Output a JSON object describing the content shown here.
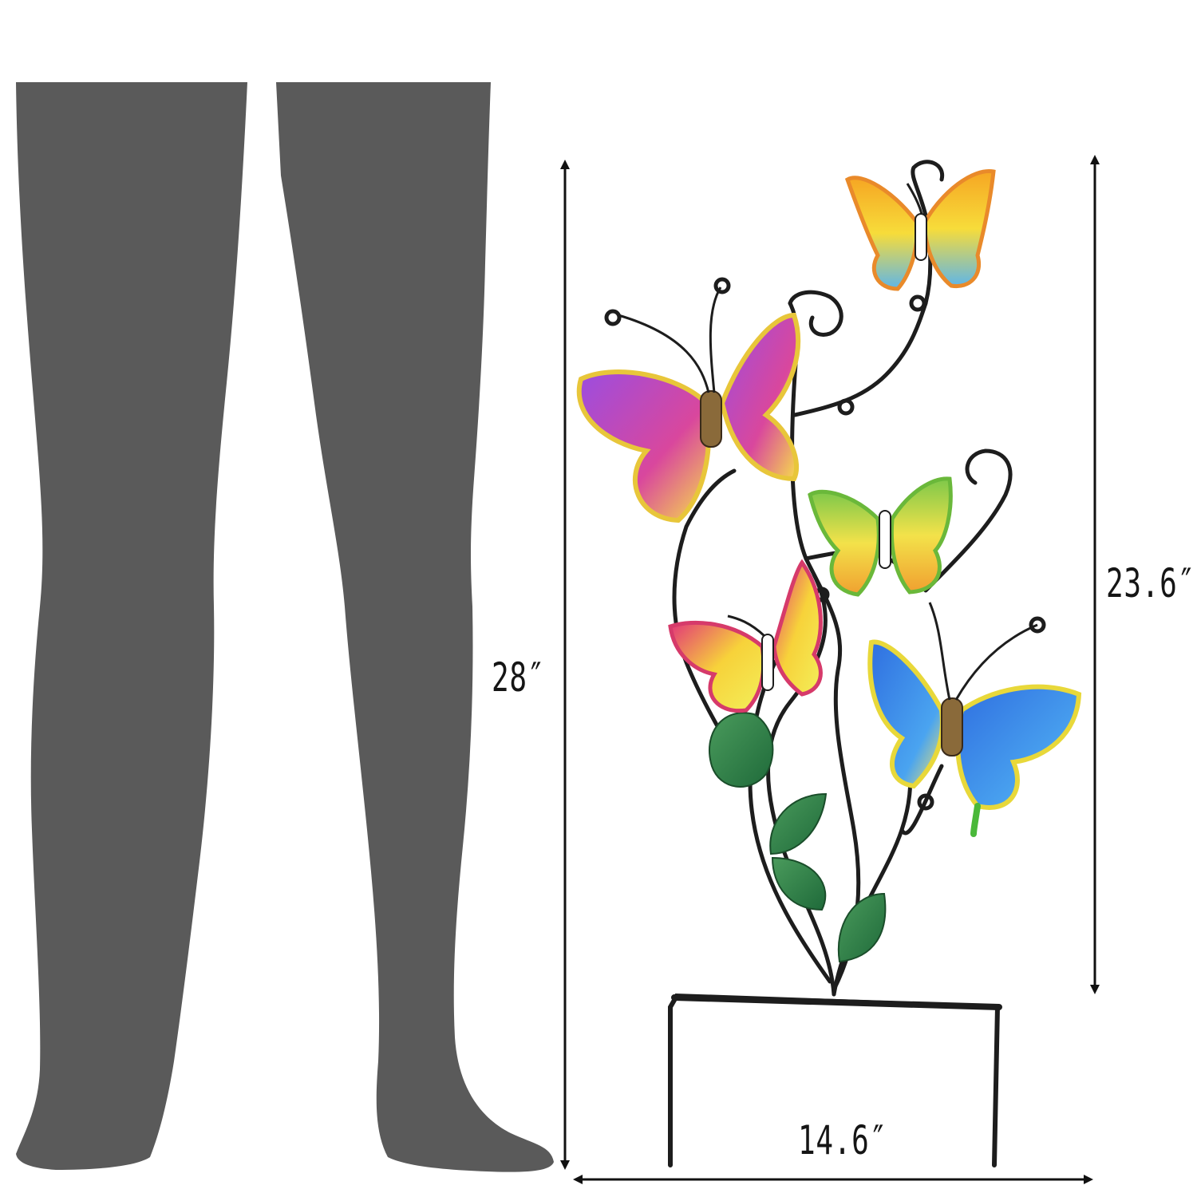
{
  "dimensions": {
    "total_height": "28″",
    "art_height": "23.6″",
    "width": "14.6″"
  },
  "colors": {
    "silhouette": "#5a5a5a",
    "metal": "#1d1d1d",
    "leaf": "#2f7d4a",
    "arrow": "#111111"
  }
}
